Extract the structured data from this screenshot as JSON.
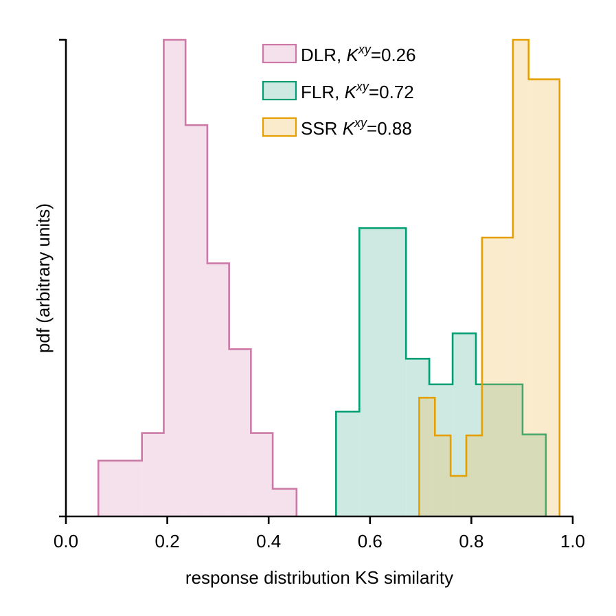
{
  "chart_data": {
    "type": "histogram",
    "xlabel": "response distribution KS similarity",
    "ylabel": "pdf (arbitrary units)",
    "xlim": [
      0.0,
      1.0
    ],
    "ylim": [
      0.0,
      1.0
    ],
    "xticks": [
      "0.0",
      "0.2",
      "0.4",
      "0.6",
      "0.8",
      "1.0"
    ],
    "xtick_values": [
      0.0,
      0.2,
      0.4,
      0.6,
      0.8,
      1.0
    ],
    "legend_position": "top-center",
    "series": [
      {
        "name": "DLR",
        "legend_prefix": "DLR, ",
        "k_symbol": "K",
        "k_super": "xy",
        "k_value": "=0.26",
        "edge_color": "#cc79a7",
        "fill_color": "#f4e1ec",
        "edges": [
          0.064,
          0.15,
          0.193,
          0.236,
          0.279,
          0.322,
          0.365,
          0.408,
          0.455
        ],
        "values": [
          0.117,
          0.175,
          1.0,
          0.821,
          0.531,
          0.351,
          0.175,
          0.058
        ]
      },
      {
        "name": "FLR",
        "legend_prefix": "FLR, ",
        "k_symbol": "K",
        "k_super": "xy",
        "k_value": "=0.72",
        "edge_color": "#009e73",
        "fill_color": "#cde9e1",
        "edges": [
          0.533,
          0.579,
          0.671,
          0.717,
          0.763,
          0.809,
          0.855,
          0.901,
          0.947
        ],
        "values": [
          0.22,
          0.605,
          0.331,
          0.277,
          0.384,
          0.277,
          0.277,
          0.172
        ]
      },
      {
        "name": "SSR",
        "legend_prefix": "SSR ",
        "k_symbol": "K",
        "k_super": "xy",
        "k_value": "=0.88",
        "edge_color": "#e69f00",
        "fill_color": "rgba(240,190,90,0.30)",
        "edges": [
          0.697,
          0.728,
          0.759,
          0.79,
          0.821,
          0.882,
          0.913,
          0.974
        ],
        "values": [
          0.249,
          0.17,
          0.085,
          0.17,
          0.585,
          1.0,
          0.917
        ]
      }
    ]
  }
}
